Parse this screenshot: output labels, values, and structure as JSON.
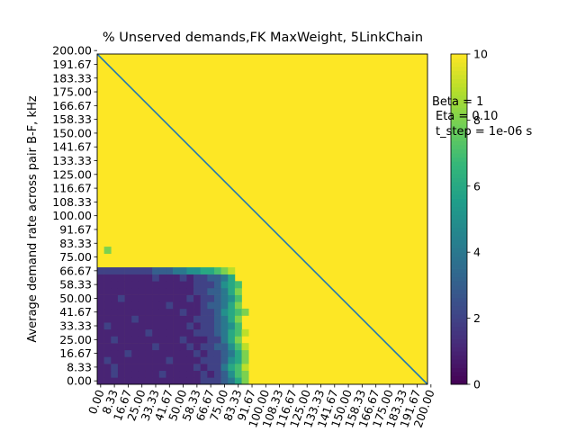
{
  "chart_data": {
    "type": "heatmap",
    "title": "% Unserved demands,FK MaxWeight, 5LinkChain",
    "xlabel": "",
    "ylabel": "Average demand rate across pair B-F, kHz",
    "x_ticks": [
      "0.00",
      "8.33",
      "16.67",
      "25.00",
      "33.33",
      "41.67",
      "50.00",
      "58.33",
      "66.67",
      "75.00",
      "83.33",
      "91.67",
      "100.00",
      "108.33",
      "116.67",
      "125.00",
      "133.33",
      "141.67",
      "150.00",
      "158.33",
      "166.67",
      "175.00",
      "183.33",
      "191.67",
      "200.00"
    ],
    "y_ticks": [
      "0.00",
      "8.33",
      "16.67",
      "25.00",
      "33.33",
      "41.67",
      "50.00",
      "58.33",
      "66.67",
      "75.00",
      "83.33",
      "91.67",
      "100.00",
      "108.33",
      "116.67",
      "125.00",
      "133.33",
      "141.67",
      "150.00",
      "158.33",
      "166.67",
      "175.00",
      "183.33",
      "191.67",
      "200.00"
    ],
    "xlim": [
      0,
      200
    ],
    "ylim": [
      0,
      200
    ],
    "grid_cells": 48,
    "saturated_value": 10,
    "low_region": {
      "description_note": "approximate per-cell values in the lower-left region, rows listed bottom to top",
      "rows": [
        [
          1,
          1,
          1,
          1,
          1,
          1,
          1,
          1,
          1,
          1,
          1,
          1,
          1,
          1,
          1,
          2,
          2,
          2,
          3,
          4,
          6,
          8,
          10
        ],
        [
          1,
          1,
          2,
          1,
          1,
          1,
          1,
          1,
          1,
          2,
          1,
          1,
          1,
          1,
          1,
          2,
          1,
          2,
          3,
          5,
          7,
          8
        ],
        [
          1,
          1,
          2,
          1,
          1,
          1,
          1,
          1,
          1,
          1,
          1,
          1,
          1,
          1,
          2,
          1,
          2,
          2,
          4,
          6,
          7,
          9
        ],
        [
          1,
          2,
          1,
          1,
          1,
          1,
          1,
          1,
          1,
          1,
          2,
          1,
          1,
          1,
          1,
          2,
          2,
          2,
          3,
          5,
          6,
          8
        ],
        [
          1,
          1,
          1,
          1,
          2,
          1,
          1,
          1,
          1,
          1,
          1,
          1,
          1,
          1,
          2,
          1,
          2,
          2,
          3,
          4,
          6,
          8
        ],
        [
          1,
          1,
          1,
          1,
          1,
          1,
          1,
          1,
          2,
          1,
          1,
          1,
          1,
          2,
          1,
          2,
          2,
          3,
          3,
          5,
          7,
          9
        ],
        [
          1,
          1,
          2,
          1,
          1,
          1,
          1,
          1,
          1,
          1,
          1,
          1,
          2,
          1,
          1,
          1,
          2,
          2,
          4,
          6,
          8
        ],
        [
          1,
          1,
          1,
          1,
          1,
          1,
          1,
          2,
          1,
          1,
          1,
          1,
          1,
          1,
          2,
          2,
          2,
          3,
          4,
          6,
          7,
          9
        ],
        [
          1,
          2,
          1,
          1,
          1,
          1,
          1,
          1,
          1,
          1,
          1,
          1,
          1,
          2,
          1,
          2,
          2,
          3,
          4,
          5,
          7
        ],
        [
          1,
          1,
          1,
          1,
          1,
          2,
          1,
          1,
          1,
          1,
          1,
          1,
          1,
          1,
          2,
          2,
          2,
          3,
          4,
          6,
          8
        ],
        [
          1,
          1,
          1,
          1,
          1,
          1,
          1,
          1,
          1,
          1,
          1,
          1,
          2,
          1,
          1,
          2,
          2,
          3,
          5,
          6,
          7,
          8
        ],
        [
          1,
          1,
          1,
          1,
          1,
          1,
          1,
          1,
          1,
          1,
          2,
          1,
          1,
          1,
          1,
          2,
          3,
          3,
          4,
          6,
          8
        ],
        [
          1,
          1,
          1,
          2,
          1,
          1,
          1,
          1,
          1,
          1,
          1,
          1,
          1,
          2,
          1,
          2,
          2,
          3,
          4,
          5,
          7
        ],
        [
          1,
          1,
          1,
          1,
          1,
          1,
          1,
          1,
          1,
          1,
          1,
          1,
          1,
          1,
          2,
          2,
          3,
          3,
          4,
          6,
          8
        ],
        [
          1,
          1,
          1,
          1,
          1,
          1,
          1,
          1,
          1,
          1,
          1,
          1,
          1,
          1,
          2,
          2,
          2,
          3,
          5,
          6,
          7
        ],
        [
          1,
          1,
          1,
          1,
          1,
          1,
          1,
          1,
          2,
          1,
          1,
          1,
          2,
          1,
          2,
          2,
          3,
          3,
          4,
          6
        ],
        [
          2,
          2,
          2,
          2,
          2,
          2,
          2,
          2,
          3,
          3,
          3,
          4,
          4,
          5,
          5,
          6,
          6,
          7,
          8,
          9
        ],
        [
          10,
          10,
          10,
          10,
          10,
          10,
          10,
          10,
          10,
          10,
          10,
          10,
          10,
          10,
          10,
          10,
          10,
          10,
          10,
          10
        ],
        [
          10,
          10,
          10,
          10,
          10,
          10,
          10,
          10,
          10,
          10,
          10,
          10,
          10,
          10,
          10,
          10,
          10,
          10,
          10,
          10
        ],
        [
          10,
          8,
          10,
          10,
          10,
          10,
          10,
          10,
          10,
          10,
          10,
          10,
          10,
          10,
          10,
          10,
          10,
          10,
          10,
          10
        ]
      ]
    },
    "diagonal_line": {
      "from": [
        0,
        200
      ],
      "to": [
        200,
        0
      ],
      "color": "#1f77b4"
    },
    "colorbar": {
      "min": 0,
      "max": 10,
      "ticks": [
        "0",
        "2",
        "4",
        "6",
        "8",
        "10"
      ]
    },
    "annotations": [
      "Beta = 1",
      "Eta = 0.10",
      "t_step = 1e-06 s"
    ]
  }
}
